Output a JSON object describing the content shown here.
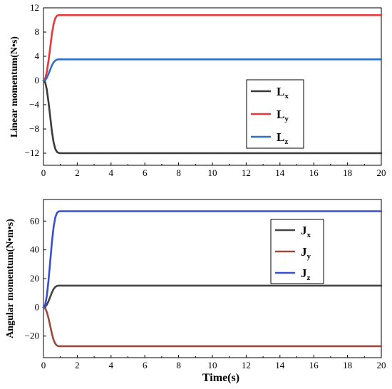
{
  "chart_data": [
    {
      "type": "line",
      "title": "",
      "xlabel": "",
      "ylabel": "Linear momentum(N•s)",
      "xlim": [
        0,
        20
      ],
      "ylim": [
        -14,
        12
      ],
      "xticks": [
        "0",
        "2",
        "4",
        "6",
        "8",
        "10",
        "12",
        "14",
        "16",
        "18",
        "20"
      ],
      "yticks": [
        "12",
        "8",
        "4",
        "0",
        "−4",
        "−8",
        "−12"
      ],
      "grid": false,
      "legend_position": "center-right",
      "series": [
        {
          "name": "Lx",
          "label_main": "L",
          "label_sub": "x",
          "color": "#3a3a3a",
          "x": [
            0,
            0.1,
            0.2,
            0.3,
            0.4,
            0.5,
            0.6,
            0.7,
            0.8,
            0.9,
            1.0,
            20
          ],
          "y": [
            0,
            -0.3,
            -1.5,
            -3.6,
            -6.0,
            -8.4,
            -10.2,
            -11.3,
            -11.8,
            -11.95,
            -12.0,
            -12.0
          ]
        },
        {
          "name": "Ly",
          "label_main": "L",
          "label_sub": "y",
          "color": "#e8383a",
          "x": [
            0,
            0.1,
            0.2,
            0.3,
            0.4,
            0.5,
            0.6,
            0.7,
            0.8,
            0.9,
            1.0,
            20
          ],
          "y": [
            0,
            0.3,
            1.4,
            3.3,
            5.5,
            7.7,
            9.3,
            10.3,
            10.7,
            10.8,
            10.8,
            10.8
          ]
        },
        {
          "name": "Lz",
          "label_main": "L",
          "label_sub": "z",
          "color": "#2f6fc8",
          "x": [
            0,
            0.1,
            0.2,
            0.3,
            0.4,
            0.5,
            0.6,
            0.7,
            0.8,
            0.9,
            1.0,
            20
          ],
          "y": [
            0,
            0.1,
            0.45,
            1.1,
            1.8,
            2.5,
            3.0,
            3.3,
            3.45,
            3.5,
            3.5,
            3.5
          ]
        }
      ]
    },
    {
      "type": "line",
      "title": "",
      "xlabel": "Time(s)",
      "ylabel": "Angular momentum(N•m•s)",
      "xlim": [
        0,
        20
      ],
      "ylim": [
        -35,
        75
      ],
      "xticks": [
        "0",
        "2",
        "4",
        "6",
        "8",
        "10",
        "12",
        "14",
        "16",
        "18",
        "20"
      ],
      "yticks": [
        "60",
        "40",
        "20",
        "0",
        "−20"
      ],
      "grid": false,
      "legend_position": "top-right",
      "series": [
        {
          "name": "Jx",
          "label_main": "J",
          "label_sub": "x",
          "color": "#444444",
          "x": [
            0,
            0.1,
            0.2,
            0.3,
            0.4,
            0.5,
            0.6,
            0.7,
            0.8,
            0.9,
            1.0,
            20
          ],
          "y": [
            0,
            0.4,
            1.8,
            4.3,
            7.3,
            10.3,
            12.7,
            14.2,
            14.9,
            15.1,
            15.1,
            15.1
          ]
        },
        {
          "name": "Jy",
          "label_main": "J",
          "label_sub": "y",
          "color": "#9b4a3e",
          "x": [
            0,
            0.1,
            0.2,
            0.3,
            0.4,
            0.5,
            0.6,
            0.7,
            0.8,
            0.9,
            1.0,
            20
          ],
          "y": [
            0,
            -0.7,
            -3.3,
            -7.7,
            -13.0,
            -18.3,
            -22.6,
            -25.4,
            -26.6,
            -27.0,
            -27.0,
            -27.0
          ]
        },
        {
          "name": "Jz",
          "label_main": "J",
          "label_sub": "z",
          "color": "#3a4fd0",
          "x": [
            0,
            0.1,
            0.2,
            0.3,
            0.4,
            0.5,
            0.6,
            0.7,
            0.8,
            0.9,
            1.0,
            20
          ],
          "y": [
            0,
            1.7,
            7.9,
            18.8,
            32.1,
            45.2,
            55.8,
            62.6,
            65.8,
            66.7,
            66.8,
            66.8
          ]
        }
      ]
    }
  ]
}
